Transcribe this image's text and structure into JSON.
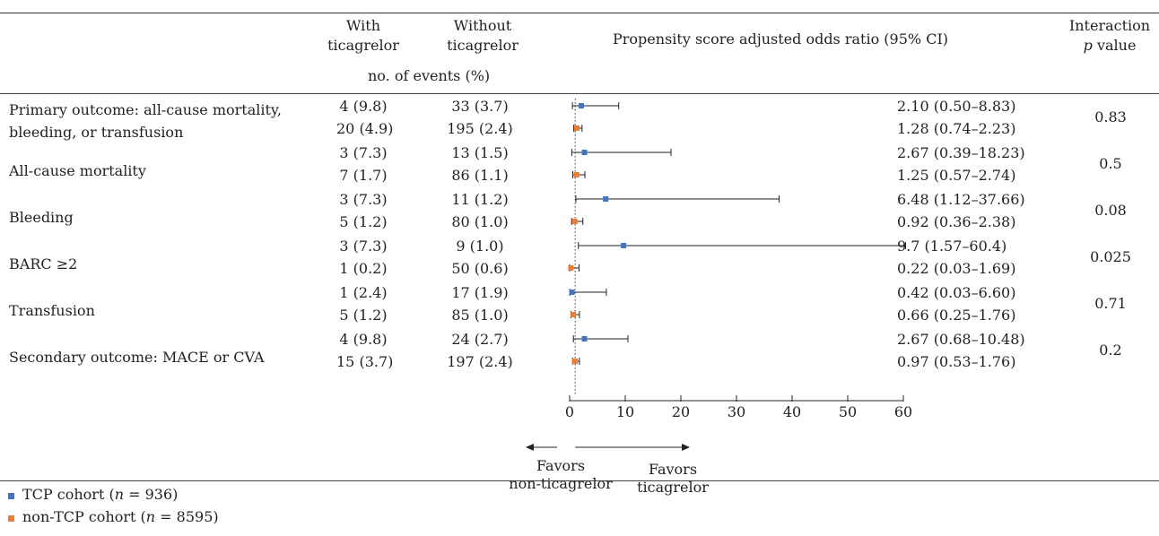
{
  "header": {
    "with_label": [
      "With",
      "ticagrelor"
    ],
    "without_label": [
      "Without",
      "ticagrelor"
    ],
    "events_label": "no. of events (%)",
    "or_label": "Propensity score adjusted odds ratio (95% CI)",
    "interaction_label": [
      "Interaction",
      "p",
      "value"
    ]
  },
  "rows": [
    {
      "label": [
        "Primary outcome: all-cause mortality,",
        "bleeding, or transfusion"
      ],
      "tcp": {
        "with": "4 (9.8)",
        "without": "33 (3.7)",
        "ci_text": "2.10 (0.50–8.83)"
      },
      "non_tcp": {
        "with": "20 (4.9)",
        "without": "195 (2.4)",
        "ci_text": "1.28 (0.74–2.23)"
      },
      "p": "0.83"
    },
    {
      "label": [
        "All-cause mortality"
      ],
      "tcp": {
        "with": "3 (7.3)",
        "without": "13 (1.5)",
        "ci_text": "2.67 (0.39–18.23)"
      },
      "non_tcp": {
        "with": "7 (1.7)",
        "without": "86 (1.1)",
        "ci_text": "1.25 (0.57–2.74)"
      },
      "p": "0.5"
    },
    {
      "label": [
        "Bleeding"
      ],
      "tcp": {
        "with": "3 (7.3)",
        "without": "11 (1.2)",
        "ci_text": "6.48 (1.12–37.66)"
      },
      "non_tcp": {
        "with": "5 (1.2)",
        "without": "80 (1.0)",
        "ci_text": "0.92 (0.36–2.38)"
      },
      "p": "0.08"
    },
    {
      "label": [
        "BARC ≥2"
      ],
      "tcp": {
        "with": "3 (7.3)",
        "without": "9 (1.0)",
        "ci_text": "9.7 (1.57–60.4)"
      },
      "non_tcp": {
        "with": "1 (0.2)",
        "without": "50 (0.6)",
        "ci_text": "0.22 (0.03–1.69)"
      },
      "p": "0.025"
    },
    {
      "label": [
        "Transfusion"
      ],
      "tcp": {
        "with": "1 (2.4)",
        "without": "17 (1.9)",
        "ci_text": "0.42 (0.03–6.60)"
      },
      "non_tcp": {
        "with": "5 (1.2)",
        "without": "85 (1.0)",
        "ci_text": "0.66 (0.25–1.76)"
      },
      "p": "0.71"
    },
    {
      "label": [
        "Secondary outcome: MACE or CVA"
      ],
      "tcp": {
        "with": "4 (9.8)",
        "without": "24 (2.7)",
        "ci_text": "2.67 (0.68–10.48)"
      },
      "non_tcp": {
        "with": "15 (3.7)",
        "without": "197 (2.4)",
        "ci_text": "0.97  (0.53–1.76)"
      },
      "p": "0.2"
    }
  ],
  "favors": {
    "left": [
      "Favors",
      "non-ticagrelor"
    ],
    "right": [
      "Favors",
      "ticagrelor"
    ]
  },
  "legend": [
    {
      "label": "TCP cohort (",
      "n": "n",
      "value": " = 936)",
      "color": "#4472c4"
    },
    {
      "label": "non-TCP cohort (",
      "n": "n",
      "value": " = 8595)",
      "color": "#ed7d31"
    }
  ],
  "chart_data": {
    "type": "forest",
    "xlim": [
      0,
      60
    ],
    "xticks": [
      0,
      10,
      20,
      30,
      40,
      50,
      60
    ],
    "reference_line": 1,
    "series": [
      {
        "name": "TCP cohort",
        "color": "#4472c4",
        "values": [
          {
            "or": 2.1,
            "lo": 0.5,
            "hi": 8.83
          },
          {
            "or": 2.67,
            "lo": 0.39,
            "hi": 18.23
          },
          {
            "or": 6.48,
            "lo": 1.12,
            "hi": 37.66
          },
          {
            "or": 9.7,
            "lo": 1.57,
            "hi": 60.4
          },
          {
            "or": 0.42,
            "lo": 0.03,
            "hi": 6.6
          },
          {
            "or": 2.67,
            "lo": 0.68,
            "hi": 10.48
          }
        ]
      },
      {
        "name": "non-TCP cohort",
        "color": "#ed7d31",
        "values": [
          {
            "or": 1.28,
            "lo": 0.74,
            "hi": 2.23
          },
          {
            "or": 1.25,
            "lo": 0.57,
            "hi": 2.74
          },
          {
            "or": 0.92,
            "lo": 0.36,
            "hi": 2.38
          },
          {
            "or": 0.22,
            "lo": 0.03,
            "hi": 1.69
          },
          {
            "or": 0.66,
            "lo": 0.25,
            "hi": 1.76
          },
          {
            "or": 0.97,
            "lo": 0.53,
            "hi": 1.76
          }
        ]
      }
    ]
  }
}
